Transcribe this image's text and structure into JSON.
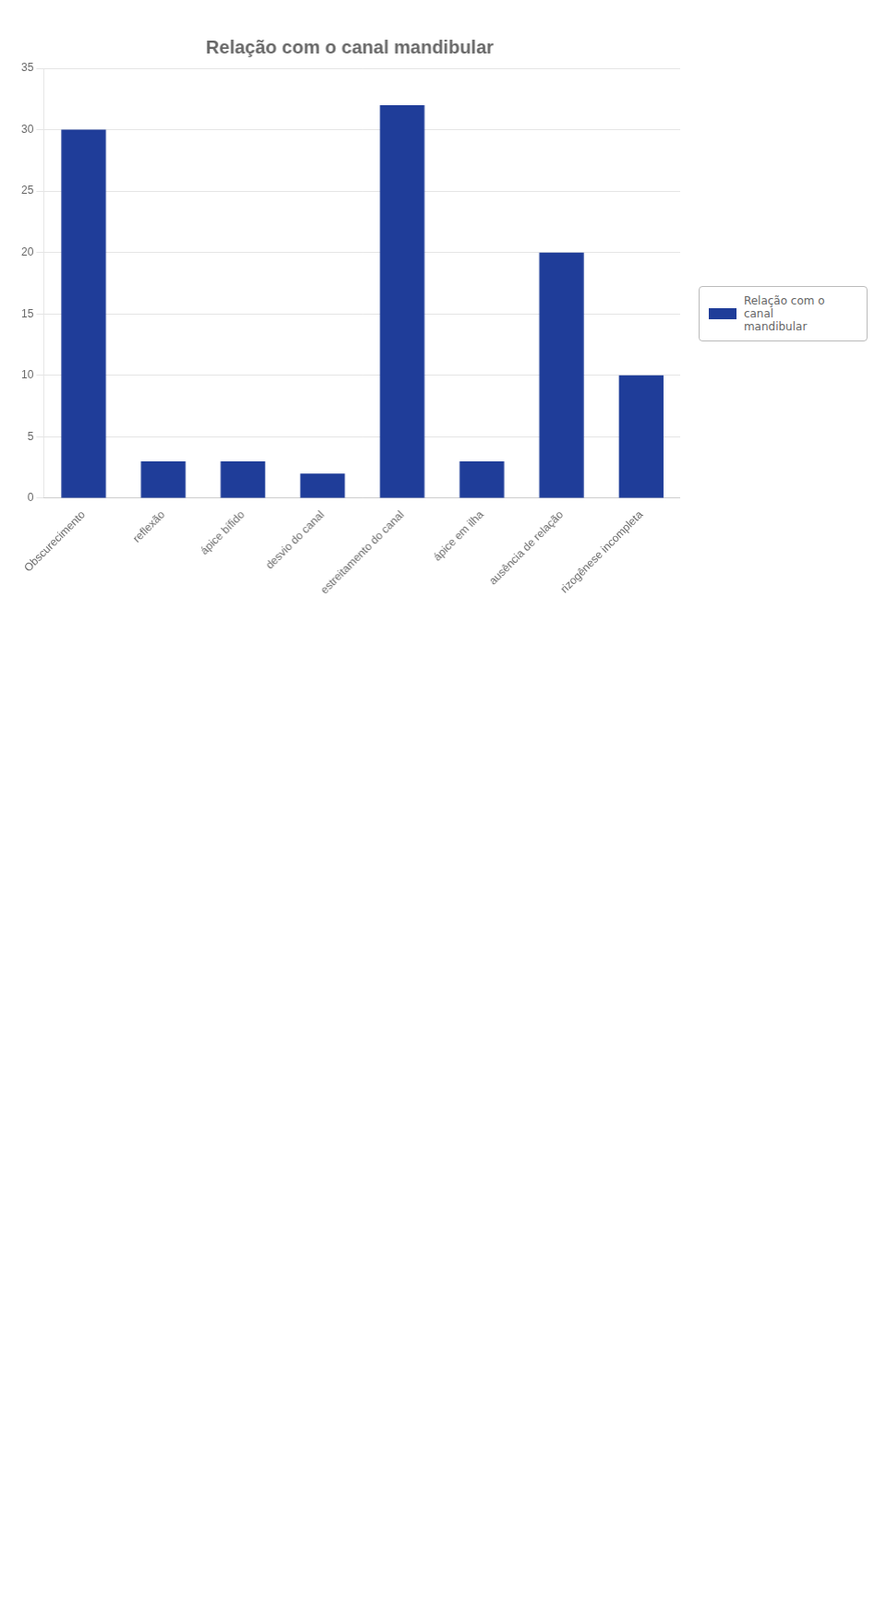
{
  "chart_data": {
    "type": "bar",
    "title": "Relação com o canal mandibular",
    "categories": [
      "Obscurecimento",
      "reflexão",
      "ápice bífido",
      "desvio do canal",
      "estreitamento do canal",
      "ápice em ilha",
      "ausência de relação",
      "rizogênese incompleta"
    ],
    "series": [
      {
        "name": "Relação com o canal\nmandibular",
        "color": "#1F3D99",
        "values": [
          30,
          3,
          3,
          2,
          32,
          3,
          20,
          10
        ]
      }
    ],
    "ylim": [
      0,
      35
    ],
    "yticks": [
      0,
      5,
      10,
      15,
      20,
      25,
      30,
      35
    ],
    "grid": true,
    "legend": "right"
  }
}
